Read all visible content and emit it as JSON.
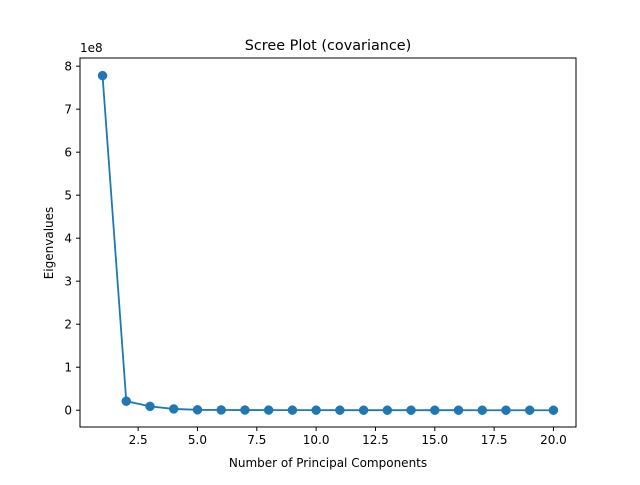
{
  "chart_data": {
    "type": "line",
    "title": "Scree Plot (covariance)",
    "xlabel": "Number of Principal Components",
    "ylabel": "Eigenvalues",
    "y_scale_label": "1e8",
    "xlim": [
      0.05,
      20.95
    ],
    "ylim": [
      -0.39,
      8.19
    ],
    "x_ticks": [
      2.5,
      5.0,
      7.5,
      10.0,
      12.5,
      15.0,
      17.5,
      20.0
    ],
    "x_tick_labels": [
      "2.5",
      "5.0",
      "7.5",
      "10.0",
      "12.5",
      "15.0",
      "17.5",
      "20.0"
    ],
    "y_ticks": [
      0,
      1,
      2,
      3,
      4,
      5,
      6,
      7,
      8
    ],
    "y_tick_labels": [
      "0",
      "1",
      "2",
      "3",
      "4",
      "5",
      "6",
      "7",
      "8"
    ],
    "grid": false,
    "series": [
      {
        "color": "#1f77b4",
        "marker": "circle",
        "x": [
          1,
          2,
          3,
          4,
          5,
          6,
          7,
          8,
          9,
          10,
          11,
          12,
          13,
          14,
          15,
          16,
          17,
          18,
          19,
          20
        ],
        "y": [
          7.78,
          0.21,
          0.09,
          0.03,
          0.01,
          0.006,
          0.004,
          0.003,
          0.002,
          0.0015,
          0.001,
          0.0008,
          0.0006,
          0.0005,
          0.0004,
          0.0003,
          0.0002,
          0.0002,
          0.0001,
          0.0001
        ]
      }
    ]
  }
}
